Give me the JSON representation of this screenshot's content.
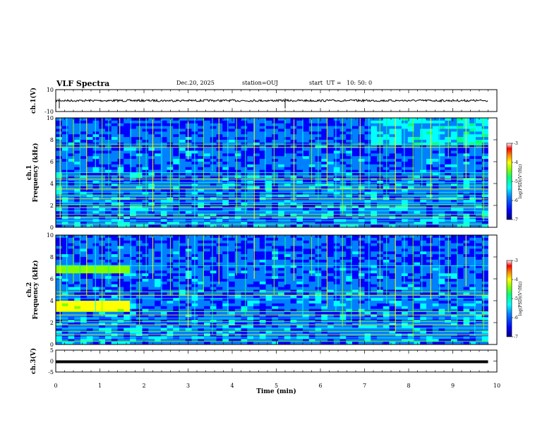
{
  "header": {
    "title": "VLF Spectra",
    "date": "Dec.20, 2025",
    "station": "station=OUJ",
    "start": "start  UT =   10: 50: 0"
  },
  "chart_data": [
    {
      "type": "line",
      "name": "ch1-waveform",
      "ylabel": "ch.1(V)",
      "ylim": [
        -10,
        10
      ],
      "yticks": [
        "10",
        "-10"
      ],
      "xlim": [
        0,
        10
      ],
      "baseline": 0,
      "spikes_min": [
        0.08,
        5.2
      ]
    },
    {
      "type": "heatmap",
      "name": "ch1-spectrogram",
      "ylabel": "ch.1\nFrequency  (kHz)",
      "ylim": [
        0,
        10
      ],
      "yticks": [
        "0",
        "2",
        "4",
        "6",
        "8",
        "10"
      ],
      "xlim": [
        0,
        10
      ],
      "data_end_min": 9.8,
      "colorbar": {
        "label": "log(PSD)(V²/Hz)",
        "range": [
          -7,
          -3
        ],
        "ticks": [
          "-3",
          "-4",
          "-5",
          "-6",
          "-7"
        ]
      },
      "bands_khz": [
        0.3,
        0.6,
        0.9,
        1.2,
        1.5,
        1.8,
        2.1,
        2.3,
        2.6,
        2.9,
        3.2,
        3.5,
        3.8,
        4.1,
        4.4,
        4.7,
        5.0,
        7.3,
        7.6
      ],
      "sferic_times_min": [
        0.1,
        0.25,
        0.4,
        0.55,
        0.7,
        0.9,
        1.05,
        1.2,
        1.45,
        1.7,
        1.9,
        2.05,
        2.2,
        2.4,
        2.6,
        2.8,
        3.0,
        3.15,
        3.35,
        3.55,
        3.7,
        3.9,
        4.1,
        4.3,
        4.5,
        4.75,
        4.95,
        5.2,
        5.4,
        5.6,
        5.8,
        5.95,
        6.15,
        6.35,
        6.5,
        6.7,
        6.9,
        7.1,
        7.35,
        7.5,
        7.7,
        7.9,
        8.1,
        8.3,
        8.5,
        8.7,
        8.9,
        9.1,
        9.3,
        9.5,
        9.7
      ]
    },
    {
      "type": "heatmap",
      "name": "ch2-spectrogram",
      "ylabel": "ch.2\nFrequency  (kHz)",
      "ylim": [
        0,
        10
      ],
      "yticks": [
        "0",
        "2",
        "4",
        "6",
        "8",
        "10"
      ],
      "xlim": [
        0,
        10
      ],
      "data_end_min": 9.8,
      "colorbar": {
        "label": "log(PSD)(V²/Hz)",
        "range": [
          -7,
          -3
        ],
        "ticks": [
          "-3",
          "-4",
          "-5",
          "-6",
          "-7"
        ]
      },
      "bands_khz": [
        0.3,
        0.6,
        0.9,
        1.2,
        1.5,
        1.8,
        2.1,
        2.4,
        2.7,
        3.0,
        4.2,
        4.5,
        4.8,
        7.2
      ],
      "enhanced_regions": [
        {
          "t0": 0.0,
          "t1": 1.7,
          "f0": 2.9,
          "f1": 3.9,
          "level": -4.6
        },
        {
          "t0": 0.0,
          "t1": 1.7,
          "f0": 6.6,
          "f1": 7.2,
          "level": -5.0
        }
      ],
      "sferic_times_min": [
        0.1,
        0.25,
        0.4,
        0.55,
        0.7,
        0.9,
        1.05,
        1.2,
        1.45,
        1.7,
        1.9,
        2.05,
        2.2,
        2.4,
        2.6,
        2.8,
        3.0,
        3.15,
        3.35,
        3.55,
        3.7,
        3.9,
        4.1,
        4.3,
        4.5,
        4.75,
        4.95,
        5.2,
        5.4,
        5.6,
        5.8,
        5.95,
        6.15,
        6.35,
        6.5,
        6.7,
        6.9,
        7.1,
        7.35,
        7.5,
        7.7,
        7.9,
        8.1,
        8.3,
        8.5,
        8.7,
        8.9,
        9.1,
        9.3,
        9.5,
        9.7
      ]
    },
    {
      "type": "line",
      "name": "ch3-waveform",
      "ylabel": "ch.3(V)",
      "ylim": [
        -5,
        5
      ],
      "yticks": [
        "5",
        "0",
        "-5"
      ],
      "xlim": [
        0,
        10
      ],
      "baseline": 0,
      "xlabel": "Time  (min)",
      "xticks": [
        "0",
        "1",
        "2",
        "3",
        "4",
        "5",
        "6",
        "7",
        "8",
        "9",
        "10"
      ]
    }
  ],
  "colors": {
    "background": "#ffffff",
    "axes": "#000000",
    "colormap": [
      "#00007f",
      "#0000ff",
      "#0080ff",
      "#00ffff",
      "#00ff80",
      "#80ff00",
      "#ffff00",
      "#ff8000",
      "#ff0000",
      "#ffffff"
    ]
  }
}
